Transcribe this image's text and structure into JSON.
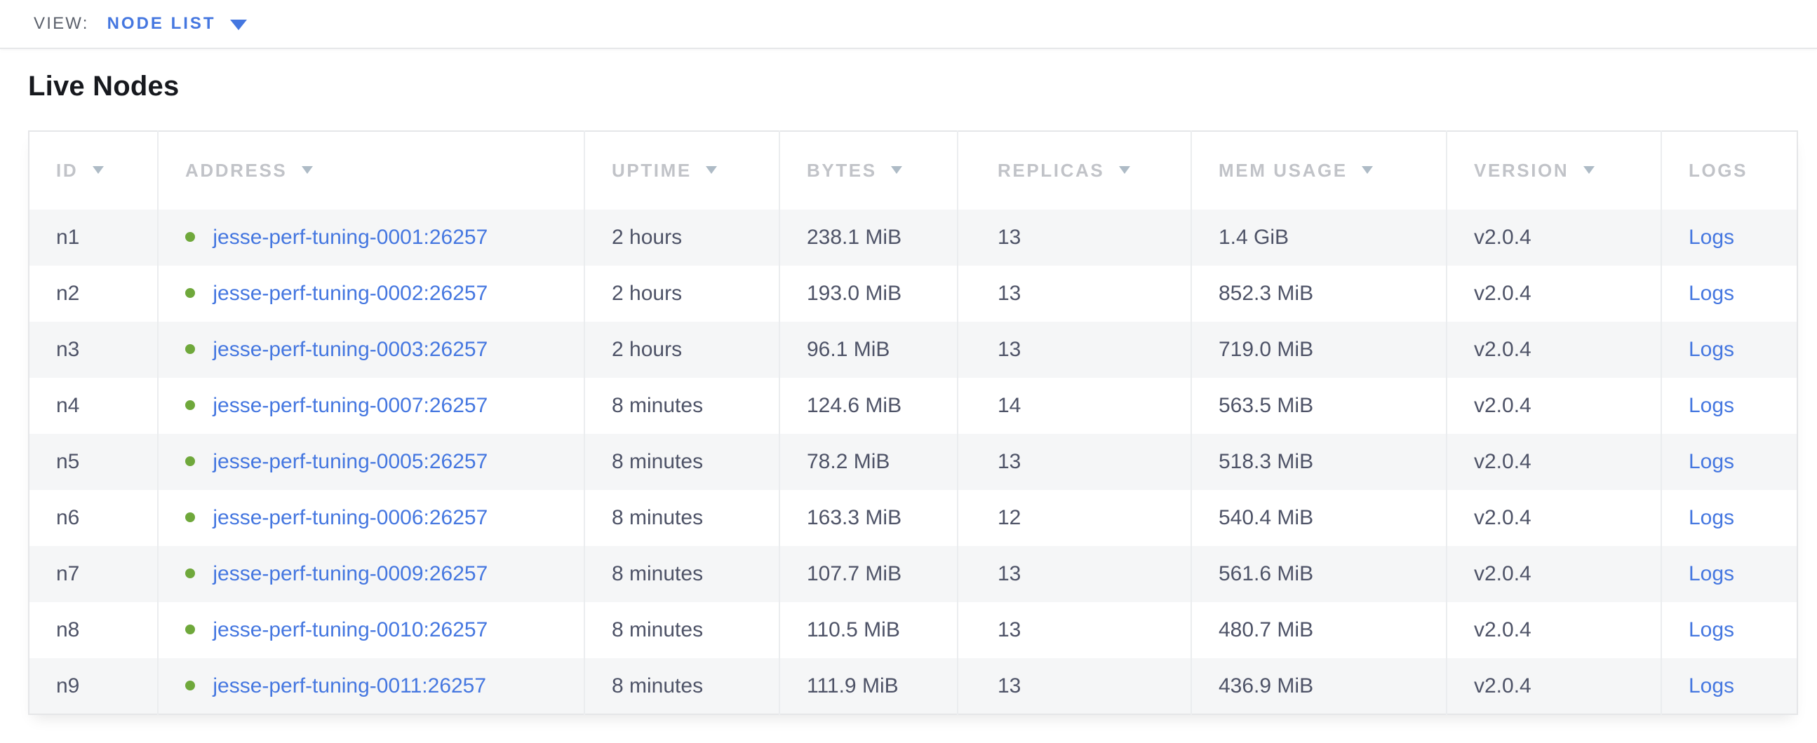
{
  "toolbar": {
    "view_label": "VIEW:",
    "view_value": "NODE LIST"
  },
  "page": {
    "title": "Live Nodes"
  },
  "table": {
    "columns": [
      {
        "key": "id",
        "class": "col-id",
        "label": "ID",
        "sortable": true
      },
      {
        "key": "address",
        "class": "col-address",
        "label": "ADDRESS",
        "sortable": true
      },
      {
        "key": "uptime",
        "class": "col-uptime",
        "label": "UPTIME",
        "sortable": true
      },
      {
        "key": "bytes",
        "class": "col-bytes",
        "label": "BYTES",
        "sortable": true
      },
      {
        "key": "replicas",
        "class": "col-replicas",
        "label": "REPLICAS",
        "sortable": true
      },
      {
        "key": "mem_usage",
        "class": "col-mem",
        "label": "MEM USAGE",
        "sortable": true
      },
      {
        "key": "version",
        "class": "col-version",
        "label": "VERSION",
        "sortable": true
      },
      {
        "key": "logs",
        "class": "col-logs",
        "label": "LOGS",
        "sortable": false
      }
    ],
    "rows": [
      {
        "id": "n1",
        "status": "live",
        "address": "jesse-perf-tuning-0001:26257",
        "uptime": "2 hours",
        "bytes": "238.1 MiB",
        "replicas": "13",
        "mem_usage": "1.4 GiB",
        "version": "v2.0.4",
        "logs_label": "Logs"
      },
      {
        "id": "n2",
        "status": "live",
        "address": "jesse-perf-tuning-0002:26257",
        "uptime": "2 hours",
        "bytes": "193.0 MiB",
        "replicas": "13",
        "mem_usage": "852.3 MiB",
        "version": "v2.0.4",
        "logs_label": "Logs"
      },
      {
        "id": "n3",
        "status": "live",
        "address": "jesse-perf-tuning-0003:26257",
        "uptime": "2 hours",
        "bytes": "96.1 MiB",
        "replicas": "13",
        "mem_usage": "719.0 MiB",
        "version": "v2.0.4",
        "logs_label": "Logs"
      },
      {
        "id": "n4",
        "status": "live",
        "address": "jesse-perf-tuning-0007:26257",
        "uptime": "8 minutes",
        "bytes": "124.6 MiB",
        "replicas": "14",
        "mem_usage": "563.5 MiB",
        "version": "v2.0.4",
        "logs_label": "Logs"
      },
      {
        "id": "n5",
        "status": "live",
        "address": "jesse-perf-tuning-0005:26257",
        "uptime": "8 minutes",
        "bytes": "78.2 MiB",
        "replicas": "13",
        "mem_usage": "518.3 MiB",
        "version": "v2.0.4",
        "logs_label": "Logs"
      },
      {
        "id": "n6",
        "status": "live",
        "address": "jesse-perf-tuning-0006:26257",
        "uptime": "8 minutes",
        "bytes": "163.3 MiB",
        "replicas": "12",
        "mem_usage": "540.4 MiB",
        "version": "v2.0.4",
        "logs_label": "Logs"
      },
      {
        "id": "n7",
        "status": "live",
        "address": "jesse-perf-tuning-0009:26257",
        "uptime": "8 minutes",
        "bytes": "107.7 MiB",
        "replicas": "13",
        "mem_usage": "561.6 MiB",
        "version": "v2.0.4",
        "logs_label": "Logs"
      },
      {
        "id": "n8",
        "status": "live",
        "address": "jesse-perf-tuning-0010:26257",
        "uptime": "8 minutes",
        "bytes": "110.5 MiB",
        "replicas": "13",
        "mem_usage": "480.7 MiB",
        "version": "v2.0.4",
        "logs_label": "Logs"
      },
      {
        "id": "n9",
        "status": "live",
        "address": "jesse-perf-tuning-0011:26257",
        "uptime": "8 minutes",
        "bytes": "111.9 MiB",
        "replicas": "13",
        "mem_usage": "436.9 MiB",
        "version": "v2.0.4",
        "logs_label": "Logs"
      }
    ]
  },
  "colors": {
    "accent_blue": "#4577e0",
    "live_green": "#6fa83b",
    "divider": "#e6e7e9"
  }
}
